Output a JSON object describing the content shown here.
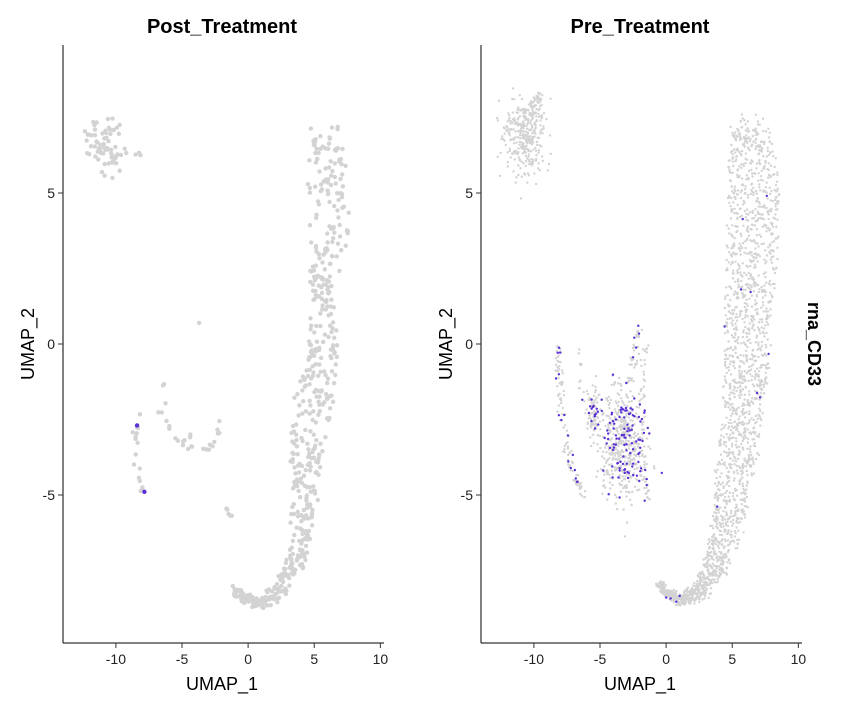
{
  "side_label": "rna_CD33",
  "colors": {
    "low": "#d3d3d3",
    "high": "#5a2fd6"
  },
  "chart_data": [
    {
      "type": "scatter",
      "title": "Post_Treatment",
      "xlabel": "UMAP_1",
      "ylabel": "UMAP_2",
      "xlim": [
        -14,
        10.2
      ],
      "ylim": [
        -9.9,
        9.9
      ],
      "xticks": [
        -10,
        -5,
        0,
        5,
        10
      ],
      "yticks": [
        -5,
        0,
        5
      ],
      "points_step": 0.5,
      "grid": false,
      "clusters": [
        {
          "name": "top-left",
          "kind": "blob",
          "cx": -10.8,
          "cy": 6.6,
          "rx": 1.2,
          "ry": 0.85,
          "n": 70,
          "high_frac": 0,
          "seed": 11
        },
        {
          "name": "top-left-stray",
          "kind": "blob",
          "cx": -8.4,
          "cy": 6.3,
          "rx": 0.2,
          "ry": 0.06,
          "n": 3,
          "high_frac": 0,
          "seed": 12
        },
        {
          "name": "stalk",
          "kind": "path",
          "path": [
            [
              5.7,
              7.1
            ],
            [
              6.0,
              5.5
            ],
            [
              6.1,
              3.8
            ],
            [
              5.6,
              2.2
            ],
            [
              5.6,
              1.0
            ],
            [
              5.6,
              -0.5
            ],
            [
              5.0,
              -2.0
            ],
            [
              4.4,
              -4.0
            ],
            [
              4.2,
              -5.5
            ],
            [
              3.8,
              -7.0
            ],
            [
              2.5,
              -8.1
            ],
            [
              1.0,
              -8.6
            ],
            [
              -0.3,
              -8.4
            ],
            [
              -1.0,
              -8.1
            ]
          ],
          "widths": [
            1.0,
            1.6,
            1.6,
            0.9,
            0.9,
            1.3,
            1.5,
            1.3,
            1.0,
            0.7,
            0.6,
            0.5,
            0.4,
            0.3
          ],
          "n": 560,
          "high_frac": 0,
          "seed": 21
        },
        {
          "name": "left-arc",
          "kind": "path",
          "path": [
            [
              -6.3,
              -1.2
            ],
            [
              -6.6,
              -2.3
            ],
            [
              -6.0,
              -2.8
            ],
            [
              -4.5,
              -3.4
            ],
            [
              -3.0,
              -3.6
            ],
            [
              -2.3,
              -2.8
            ],
            [
              -2.2,
              -2.3
            ]
          ],
          "widths": [
            0.25,
            0.3,
            0.3,
            0.3,
            0.3,
            0.3,
            0.25
          ],
          "n": 26,
          "high_frac": 0,
          "seed": 31
        },
        {
          "name": "left-strand",
          "kind": "path",
          "path": [
            [
              -8.2,
              -2.2
            ],
            [
              -8.6,
              -3.2
            ],
            [
              -8.4,
              -4.2
            ],
            [
              -8.0,
              -4.8
            ],
            [
              -7.6,
              -5.1
            ]
          ],
          "widths": [
            0.2,
            0.25,
            0.25,
            0.2,
            0.2
          ],
          "n": 18,
          "high_frac": 0.05,
          "seed": 41
        },
        {
          "name": "small-right",
          "kind": "path",
          "path": [
            [
              -1.6,
              -5.4
            ],
            [
              -1.3,
              -5.7
            ]
          ],
          "widths": [
            0.1,
            0.1
          ],
          "n": 5,
          "high_frac": 0,
          "seed": 51
        },
        {
          "name": "stray-mid",
          "kind": "blob",
          "cx": -3.7,
          "cy": 0.7,
          "rx": 0.05,
          "ry": 0.05,
          "n": 1,
          "high_frac": 0,
          "seed": 61
        },
        {
          "name": "stray-arc",
          "kind": "blob",
          "cx": -4.4,
          "cy": -3.0,
          "rx": 0.1,
          "ry": 0.1,
          "n": 2,
          "high_frac": 0,
          "seed": 62
        }
      ]
    },
    {
      "type": "scatter",
      "title": "Pre_Treatment",
      "xlabel": "UMAP_1",
      "ylabel": "UMAP_2",
      "xlim": [
        -14,
        10.2
      ],
      "ylim": [
        -9.9,
        9.9
      ],
      "xticks": [
        -10,
        -5,
        0,
        5,
        10
      ],
      "yticks": [
        -5,
        0,
        5
      ],
      "points_step": 0.5,
      "grid": false,
      "clusters": [
        {
          "name": "top-left",
          "kind": "blob",
          "cx": -10.7,
          "cy": 6.9,
          "rx": 1.4,
          "ry": 1.1,
          "n": 320,
          "high_frac": 0,
          "seed": 111
        },
        {
          "name": "top-left-arm",
          "kind": "path",
          "path": [
            [
              -10.4,
              7.5
            ],
            [
              -9.8,
              8.0
            ],
            [
              -9.5,
              8.3
            ]
          ],
          "widths": [
            0.5,
            0.4,
            0.3
          ],
          "n": 50,
          "high_frac": 0,
          "seed": 112
        },
        {
          "name": "stalk",
          "kind": "path",
          "path": [
            [
              6.2,
              7.3
            ],
            [
              6.5,
              5.8
            ],
            [
              6.6,
              4.0
            ],
            [
              6.4,
              2.2
            ],
            [
              6.2,
              0.5
            ],
            [
              5.9,
              -1.5
            ],
            [
              5.6,
              -3.0
            ],
            [
              5.1,
              -4.5
            ],
            [
              4.6,
              -6.0
            ],
            [
              3.8,
              -7.3
            ],
            [
              2.6,
              -8.2
            ],
            [
              1.2,
              -8.5
            ],
            [
              0,
              -8.2
            ],
            [
              -0.6,
              -7.9
            ]
          ],
          "widths": [
            1.2,
            1.9,
            2.0,
            1.9,
            1.8,
            1.6,
            1.5,
            1.4,
            1.2,
            0.9,
            0.7,
            0.5,
            0.35,
            0.3
          ],
          "n": 2100,
          "high_frac": 0.008,
          "seed": 121
        },
        {
          "name": "left-group",
          "kind": "blob",
          "cx": -3.4,
          "cy": -3.3,
          "rx": 1.5,
          "ry": 1.6,
          "n": 520,
          "high_frac": 0.18,
          "seed": 131
        },
        {
          "name": "left-spike",
          "kind": "path",
          "path": [
            [
              -1.6,
              0
            ],
            [
              -1.8,
              -1.5
            ],
            [
              -2.0,
              -3.0
            ],
            [
              -1.6,
              -4.5
            ],
            [
              -1.4,
              -5.3
            ]
          ],
          "widths": [
            0.3,
            0.3,
            0.35,
            0.3,
            0.2
          ],
          "n": 70,
          "high_frac": 0.15,
          "seed": 132
        },
        {
          "name": "left-top",
          "kind": "path",
          "path": [
            [
              -2.0,
              0.6
            ],
            [
              -2.4,
              -0.5
            ],
            [
              -2.8,
              -1.5
            ]
          ],
          "widths": [
            0.25,
            0.3,
            0.3
          ],
          "n": 40,
          "high_frac": 0.1,
          "seed": 133
        },
        {
          "name": "left-wing",
          "kind": "blob",
          "cx": -5.5,
          "cy": -2.3,
          "rx": 0.6,
          "ry": 0.8,
          "n": 90,
          "high_frac": 0.2,
          "seed": 134
        },
        {
          "name": "left-strand",
          "kind": "path",
          "path": [
            [
              -8.2,
              0
            ],
            [
              -8.0,
              -1.5
            ],
            [
              -7.9,
              -2.5
            ],
            [
              -7.5,
              -3.5
            ],
            [
              -7.0,
              -4.2
            ],
            [
              -6.5,
              -4.8
            ],
            [
              -6.1,
              -5.1
            ]
          ],
          "widths": [
            0.25,
            0.3,
            0.3,
            0.3,
            0.3,
            0.3,
            0.25
          ],
          "n": 110,
          "high_frac": 0.12,
          "seed": 135
        },
        {
          "name": "left-stray",
          "kind": "path",
          "path": [
            [
              -6.6,
              -0.2
            ],
            [
              -6.4,
              -0.8
            ],
            [
              -6.6,
              -1.5
            ]
          ],
          "widths": [
            0.1,
            0.1,
            0.1
          ],
          "n": 10,
          "high_frac": 0,
          "seed": 136
        }
      ]
    }
  ]
}
